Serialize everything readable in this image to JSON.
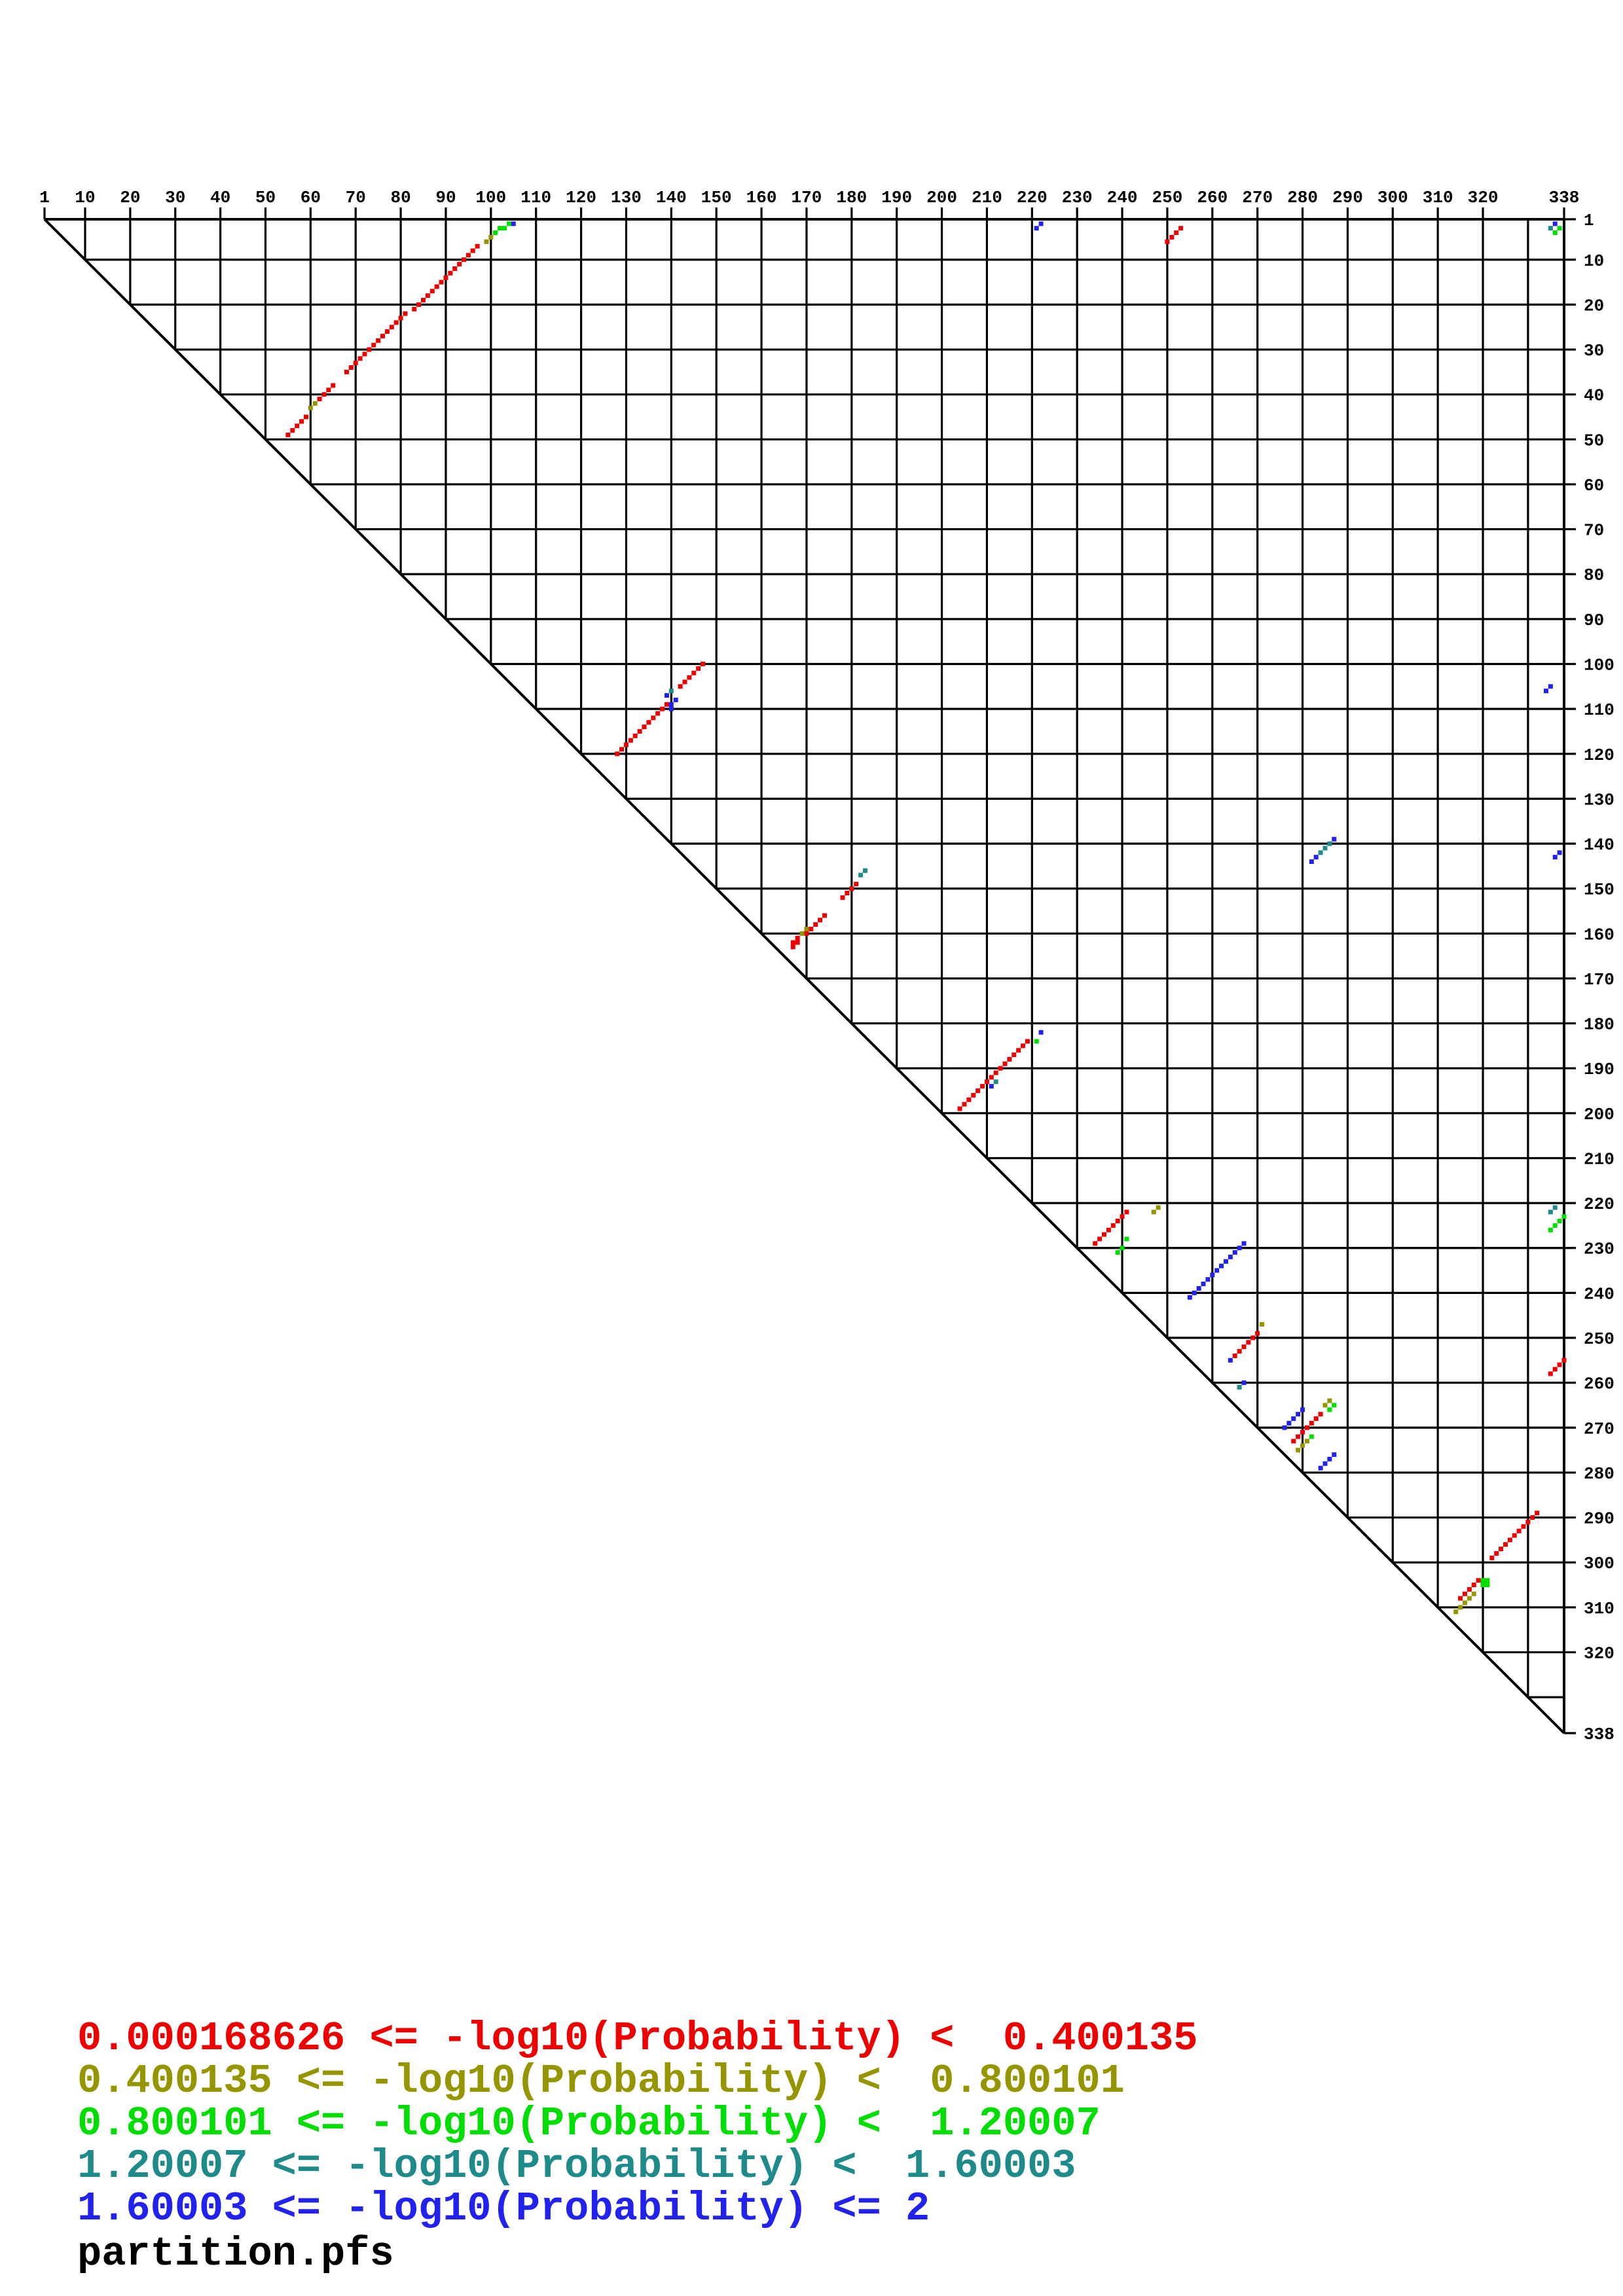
{
  "plot": {
    "axis_min": 1,
    "axis_max": 338,
    "grid_interval": 10,
    "tick_labels": [
      1,
      10,
      20,
      30,
      40,
      50,
      60,
      70,
      80,
      90,
      100,
      110,
      120,
      130,
      140,
      150,
      160,
      170,
      180,
      190,
      200,
      210,
      220,
      230,
      240,
      250,
      260,
      270,
      280,
      290,
      300,
      310,
      320,
      338
    ]
  },
  "palette": {
    "red": "#ee0000",
    "olive": "#959500",
    "green": "#00dd00",
    "teal": "#1f8a8a",
    "blue": "#2222ee",
    "grid": "#000000"
  },
  "legend": {
    "entries": [
      {
        "color_key": "red",
        "text": "0.000168626 <= -log10(Probability) <  0.400135"
      },
      {
        "color_key": "olive",
        "text": "0.400135 <= -log10(Probability) <  0.800101"
      },
      {
        "color_key": "green",
        "text": "0.800101 <= -log10(Probability) <  1.20007"
      },
      {
        "color_key": "teal",
        "text": "1.20007 <= -log10(Probability) <  1.60003"
      },
      {
        "color_key": "blue",
        "text": "1.60003 <= -log10(Probability) <= 2"
      }
    ],
    "filename": "partition.pfs"
  },
  "chart_data": {
    "type": "scatter",
    "subtype": "upper-triangle-base-pair-probability-dot-plot",
    "title": "",
    "xlabel": "",
    "ylabel": "",
    "x_axis": {
      "min": 1,
      "max": 338,
      "position": "top",
      "tick_labels": [
        1,
        10,
        20,
        30,
        40,
        50,
        60,
        70,
        80,
        90,
        100,
        110,
        120,
        130,
        140,
        150,
        160,
        170,
        180,
        190,
        200,
        210,
        220,
        230,
        240,
        250,
        260,
        270,
        280,
        290,
        300,
        310,
        320,
        338
      ],
      "grid_interval": 10
    },
    "y_axis": {
      "min": 1,
      "max": 338,
      "position": "right",
      "tick_labels": [
        1,
        10,
        20,
        30,
        40,
        50,
        60,
        70,
        80,
        90,
        100,
        110,
        120,
        130,
        140,
        150,
        160,
        170,
        180,
        190,
        200,
        210,
        220,
        230,
        240,
        250,
        260,
        270,
        280,
        290,
        300,
        310,
        320,
        338
      ],
      "grid_interval": 10
    },
    "grid": true,
    "legend_position": "bottom-left",
    "note": "segments are diagonal runs of dots: [column, row, count], each next dot at (col+1,row-1); col=x (5' index), row=y (3' index)",
    "series": [
      {
        "name": "0.000168626 <= -log10(Probability) < 0.400135",
        "color_key": "red",
        "segments": [
          [
            55,
            49,
            5
          ],
          [
            62,
            41,
            4
          ],
          [
            68,
            35,
            14
          ],
          [
            83,
            21,
            15
          ],
          [
            250,
            6,
            4
          ],
          [
            128,
            120,
            12
          ],
          [
            142,
            105,
            6
          ],
          [
            167,
            163,
            1
          ],
          [
            167,
            162,
            1
          ],
          [
            168,
            162,
            1
          ],
          [
            168,
            161,
            1
          ],
          [
            170,
            160,
            5
          ],
          [
            178,
            152,
            4
          ],
          [
            204,
            199,
            16
          ],
          [
            234,
            229,
            8
          ],
          [
            265,
            254,
            6
          ],
          [
            278,
            273,
            7
          ],
          [
            315,
            308,
            5
          ],
          [
            322,
            299,
            11
          ],
          [
            335,
            258,
            4
          ]
        ]
      },
      {
        "name": "0.400135 <= -log10(Probability) < 0.800101",
        "color_key": "olive",
        "segments": [
          [
            60,
            43,
            2
          ],
          [
            99,
            6,
            2
          ],
          [
            169,
            160,
            2
          ],
          [
            247,
            222,
            2
          ],
          [
            271,
            247,
            1
          ],
          [
            285,
            265,
            2
          ],
          [
            279,
            275,
            3
          ],
          [
            314,
            311,
            5
          ]
        ]
      },
      {
        "name": "0.800101 <= -log10(Probability) < 1.20007",
        "color_key": "green",
        "segments": [
          [
            101,
            4,
            2
          ],
          [
            103,
            3,
            2
          ],
          [
            337,
            3,
            1
          ],
          [
            336,
            4,
            1
          ],
          [
            221,
            184,
            1
          ],
          [
            239,
            231,
            2
          ],
          [
            241,
            228,
            1
          ],
          [
            286,
            266,
            2
          ],
          [
            282,
            272,
            1
          ],
          [
            335,
            226,
            4
          ],
          [
            320,
            304,
            1
          ],
          [
            321,
            304,
            1
          ],
          [
            320,
            305,
            1
          ],
          [
            321,
            305,
            1
          ]
        ]
      },
      {
        "name": "1.20007 <= -log10(Probability) < 1.60003",
        "color_key": "teal",
        "segments": [
          [
            335,
            3,
            1
          ],
          [
            140,
            106,
            1
          ],
          [
            284,
            142,
            3
          ],
          [
            182,
            147,
            2
          ],
          [
            212,
            193,
            1
          ],
          [
            266,
            261,
            1
          ],
          [
            335,
            222,
            2
          ]
        ]
      },
      {
        "name": "1.60003 <= -log10(Probability) <= 2",
        "color_key": "blue",
        "segments": [
          [
            105,
            2,
            1
          ],
          [
            221,
            3,
            2
          ],
          [
            336,
            2,
            1
          ],
          [
            139,
            107,
            1
          ],
          [
            140,
            109,
            1
          ],
          [
            141,
            108,
            1
          ],
          [
            140,
            110,
            1
          ],
          [
            334,
            106,
            2
          ],
          [
            282,
            144,
            2
          ],
          [
            287,
            139,
            1
          ],
          [
            336,
            143,
            2
          ],
          [
            211,
            194,
            1
          ],
          [
            222,
            182,
            1
          ],
          [
            255,
            241,
            13
          ],
          [
            264,
            255,
            1
          ],
          [
            267,
            260,
            1
          ],
          [
            276,
            270,
            5
          ],
          [
            284,
            279,
            4
          ]
        ]
      }
    ]
  }
}
